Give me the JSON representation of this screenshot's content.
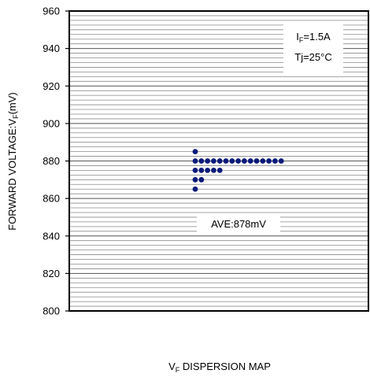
{
  "chart_data": {
    "type": "scatter",
    "title": "V",
    "title_sub": "F",
    "title_rest": " DISPERSION MAP",
    "ylabel": "FORWARD VOLTAGE:V",
    "ylabel_sub": "F",
    "ylabel_rest": "(mV)",
    "xlabel": "",
    "ylim": [
      800,
      960
    ],
    "y_ticks": [
      800,
      820,
      840,
      860,
      880,
      900,
      920,
      940,
      960
    ],
    "minor_step": 2.5,
    "grid": true,
    "condition_line1_main": "I",
    "condition_line1_sub": "F",
    "condition_line1_rest": "=1.5A",
    "condition_line2": "Tj=25°C",
    "annotation": "AVE:878mV",
    "annotation_value": 878,
    "marker_color": "#0a1a7a",
    "points": [
      {
        "value": 885,
        "count": 1
      },
      {
        "value": 880,
        "count": 15
      },
      {
        "value": 875,
        "count": 5
      },
      {
        "value": 870,
        "count": 2
      },
      {
        "value": 865,
        "count": 1
      }
    ]
  }
}
